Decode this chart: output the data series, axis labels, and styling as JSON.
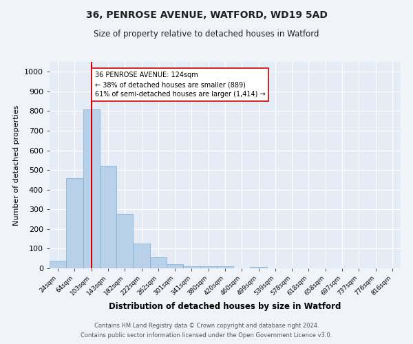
{
  "title_line1": "36, PENROSE AVENUE, WATFORD, WD19 5AD",
  "title_line2": "Size of property relative to detached houses in Watford",
  "xlabel": "Distribution of detached houses by size in Watford",
  "ylabel": "Number of detached properties",
  "categories": [
    "24sqm",
    "64sqm",
    "103sqm",
    "143sqm",
    "182sqm",
    "222sqm",
    "262sqm",
    "301sqm",
    "341sqm",
    "380sqm",
    "420sqm",
    "460sqm",
    "499sqm",
    "539sqm",
    "578sqm",
    "618sqm",
    "658sqm",
    "697sqm",
    "737sqm",
    "776sqm",
    "816sqm"
  ],
  "values": [
    40,
    460,
    810,
    520,
    275,
    125,
    57,
    20,
    10,
    10,
    10,
    0,
    7,
    0,
    0,
    0,
    0,
    0,
    0,
    0,
    0
  ],
  "bar_color": "#b8d0e8",
  "bar_edge_color": "#7aadd4",
  "vline_x_index": 2,
  "vline_color": "#cc0000",
  "annotation_text": "36 PENROSE AVENUE: 124sqm\n← 38% of detached houses are smaller (889)\n61% of semi-detached houses are larger (1,414) →",
  "annotation_box_color": "#ffffff",
  "annotation_box_edge_color": "#cc0000",
  "ylim": [
    0,
    1050
  ],
  "yticks": [
    0,
    100,
    200,
    300,
    400,
    500,
    600,
    700,
    800,
    900,
    1000
  ],
  "footer_line1": "Contains HM Land Registry data © Crown copyright and database right 2024.",
  "footer_line2": "Contains public sector information licensed under the Open Government Licence v3.0.",
  "bg_color": "#f0f4f8",
  "plot_bg_color": "#e6ecf5"
}
